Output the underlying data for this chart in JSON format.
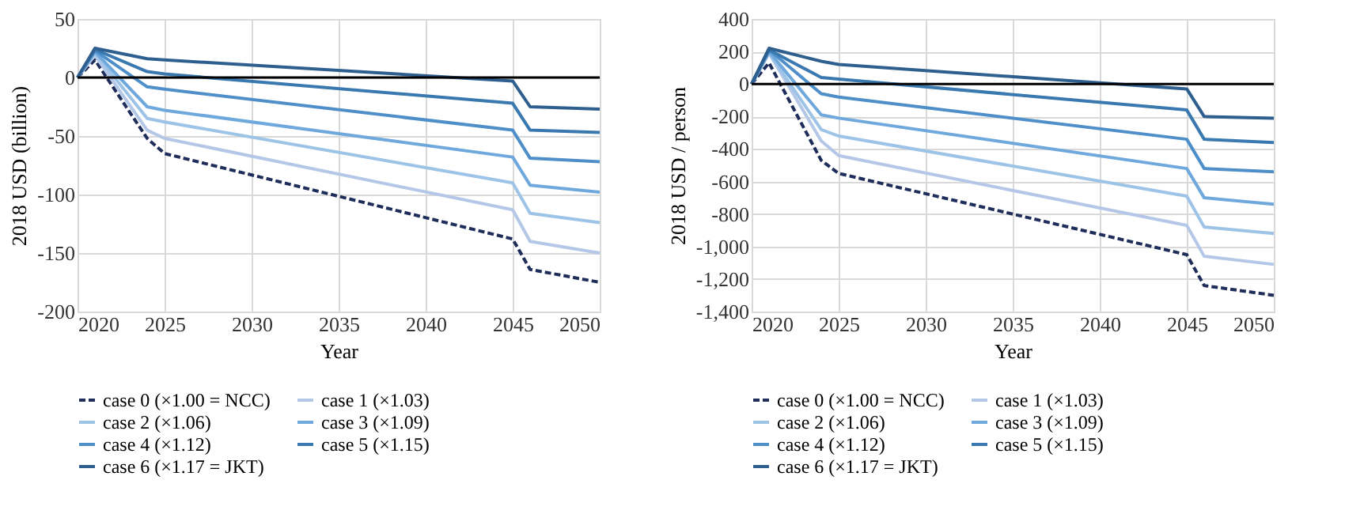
{
  "chart_data": [
    {
      "type": "line",
      "xlabel": "Year",
      "ylabel": "2018 USD (billion)",
      "xlim": [
        2020,
        2050
      ],
      "xticks": [
        2020,
        2025,
        2030,
        2035,
        2040,
        2045,
        2050
      ],
      "ylim": [
        -200,
        50
      ],
      "yticks": [
        -200,
        -150,
        -100,
        -50,
        0,
        50
      ],
      "grid": true,
      "legend": "bottom",
      "ref_lines": [
        {
          "axis": "y",
          "value": 0,
          "color": "#000000"
        }
      ],
      "x": [
        2020,
        2021,
        2024,
        2025,
        2045,
        2046,
        2050
      ],
      "series": [
        {
          "name": "case 0  (×1.00 = NCC)",
          "color": "#1f2d5a",
          "line_style": "dashed",
          "values": [
            0,
            15,
            -52,
            -65,
            -138,
            -164,
            -175
          ]
        },
        {
          "name": "case 1  (×1.03)",
          "color": "#b4c7e7",
          "values": [
            0,
            19,
            -45,
            -52,
            -113,
            -140,
            -150
          ]
        },
        {
          "name": "case 2  (×1.06)",
          "color": "#9dc3e6",
          "values": [
            0,
            21,
            -35,
            -38,
            -90,
            -116,
            -124
          ]
        },
        {
          "name": "case 3  (×1.09)",
          "color": "#6fa8dc",
          "values": [
            0,
            22,
            -25,
            -28,
            -68,
            -92,
            -98
          ]
        },
        {
          "name": "case 4  (×1.12)",
          "color": "#4f8fc9",
          "values": [
            0,
            23,
            -8,
            -10,
            -45,
            -69,
            -72
          ]
        },
        {
          "name": "case 5  (×1.15)",
          "color": "#3a78b0",
          "values": [
            0,
            24,
            5,
            3,
            -22,
            -45,
            -47
          ]
        },
        {
          "name": "case 6  (×1.17 = JKT)",
          "color": "#2e5f8f",
          "values": [
            0,
            25,
            16,
            15,
            -3,
            -25,
            -27
          ]
        }
      ]
    },
    {
      "type": "line",
      "xlabel": "Year",
      "ylabel": "2018 USD / person",
      "xlim": [
        2020,
        2050
      ],
      "xticks": [
        2020,
        2025,
        2030,
        2035,
        2040,
        2045,
        2050
      ],
      "ylim": [
        -1400,
        400
      ],
      "yticks": [
        {
          "value": -1400,
          "label": "-1,400"
        },
        {
          "value": -1200,
          "label": "-1,200"
        },
        {
          "value": -1000,
          "label": "-1,000"
        },
        -800,
        -600,
        -400,
        -200,
        0,
        200,
        400
      ],
      "grid": true,
      "legend": "bottom",
      "ref_lines": [
        {
          "axis": "y",
          "value": 0,
          "color": "#000000"
        }
      ],
      "x": [
        2020,
        2021,
        2024,
        2025,
        2045,
        2046,
        2050
      ],
      "series": [
        {
          "name": "case 0  (×1.00 = NCC)",
          "color": "#1f2d5a",
          "line_style": "dashed",
          "values": [
            0,
            130,
            -470,
            -550,
            -1050,
            -1240,
            -1300
          ]
        },
        {
          "name": "case 1  (×1.03)",
          "color": "#b4c7e7",
          "values": [
            0,
            190,
            -350,
            -440,
            -870,
            -1060,
            -1110
          ]
        },
        {
          "name": "case 2  (×1.06)",
          "color": "#9dc3e6",
          "values": [
            0,
            190,
            -280,
            -320,
            -690,
            -880,
            -920
          ]
        },
        {
          "name": "case 3  (×1.09)",
          "color": "#6fa8dc",
          "values": [
            0,
            200,
            -190,
            -210,
            -520,
            -700,
            -740
          ]
        },
        {
          "name": "case 4  (×1.12)",
          "color": "#4f8fc9",
          "values": [
            0,
            210,
            -60,
            -80,
            -340,
            -520,
            -540
          ]
        },
        {
          "name": "case 5  (×1.15)",
          "color": "#3a78b0",
          "values": [
            0,
            210,
            40,
            30,
            -160,
            -340,
            -360
          ]
        },
        {
          "name": "case 6  (×1.17 = JKT)",
          "color": "#2e5f8f",
          "values": [
            0,
            220,
            140,
            120,
            -30,
            -200,
            -210
          ]
        }
      ]
    }
  ]
}
